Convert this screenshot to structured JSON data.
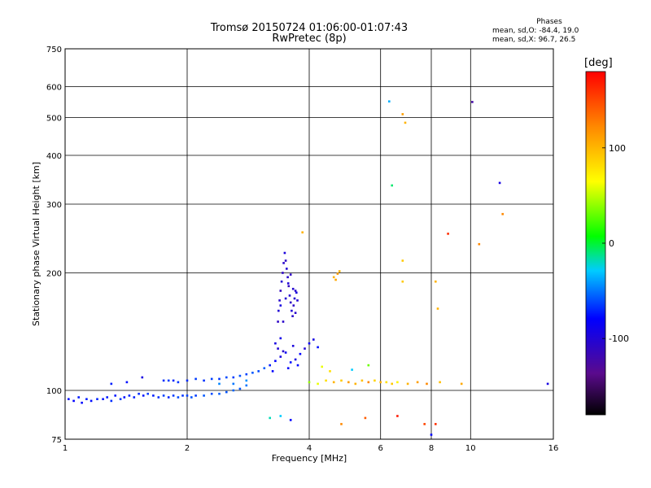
{
  "header": {
    "title_line1": "Tromsø 20150724 01:06:00-01:07:43",
    "title_line2": "RwPretec (8p)"
  },
  "phases_box": {
    "title": "Phases",
    "line_o": "mean, sd,O: -84.4, 19.0",
    "line_x": "mean, sd,X:  96.7, 26.5"
  },
  "colorbar": {
    "title": "[deg]",
    "tick_labels": [
      "100",
      "0",
      "-100"
    ],
    "tick_values": [
      100,
      0,
      -100
    ],
    "range": [
      -180,
      180
    ]
  },
  "chart_data": {
    "type": "scatter",
    "xlabel": "Frequency [MHz]",
    "ylabel": "Stationary phase Virtual Height [km]",
    "x_scale": "log",
    "y_scale": "log",
    "xlim": [
      1,
      16
    ],
    "ylim": [
      75,
      750
    ],
    "x_ticks": [
      1,
      2,
      4,
      6,
      8,
      10,
      16
    ],
    "y_ticks": [
      75,
      100,
      200,
      300,
      400,
      500,
      600,
      750
    ],
    "grid": true,
    "color_by": "phase [deg]",
    "points": [
      {
        "x": 1.02,
        "y": 95,
        "p": -95
      },
      {
        "x": 1.05,
        "y": 94,
        "p": -100
      },
      {
        "x": 1.08,
        "y": 96,
        "p": -92
      },
      {
        "x": 1.1,
        "y": 93,
        "p": -98
      },
      {
        "x": 1.13,
        "y": 95,
        "p": -90
      },
      {
        "x": 1.16,
        "y": 94,
        "p": -96
      },
      {
        "x": 1.2,
        "y": 95,
        "p": -88
      },
      {
        "x": 1.24,
        "y": 95,
        "p": -94
      },
      {
        "x": 1.27,
        "y": 96,
        "p": -90
      },
      {
        "x": 1.3,
        "y": 94,
        "p": -85
      },
      {
        "x": 1.33,
        "y": 97,
        "p": -92
      },
      {
        "x": 1.37,
        "y": 95,
        "p": -80
      },
      {
        "x": 1.4,
        "y": 96,
        "p": -95
      },
      {
        "x": 1.44,
        "y": 97,
        "p": -88
      },
      {
        "x": 1.48,
        "y": 96,
        "p": -90
      },
      {
        "x": 1.52,
        "y": 98,
        "p": -86
      },
      {
        "x": 1.56,
        "y": 97,
        "p": -93
      },
      {
        "x": 1.6,
        "y": 98,
        "p": -80
      },
      {
        "x": 1.65,
        "y": 97,
        "p": -90
      },
      {
        "x": 1.7,
        "y": 96,
        "p": -85
      },
      {
        "x": 1.75,
        "y": 97,
        "p": -78
      },
      {
        "x": 1.8,
        "y": 96,
        "p": -88
      },
      {
        "x": 1.85,
        "y": 97,
        "p": -80
      },
      {
        "x": 1.9,
        "y": 96,
        "p": -75
      },
      {
        "x": 1.95,
        "y": 97,
        "p": -82
      },
      {
        "x": 2.0,
        "y": 97,
        "p": -78
      },
      {
        "x": 2.05,
        "y": 96,
        "p": -72
      },
      {
        "x": 2.1,
        "y": 97,
        "p": -80
      },
      {
        "x": 2.2,
        "y": 97,
        "p": -70
      },
      {
        "x": 2.3,
        "y": 98,
        "p": -75
      },
      {
        "x": 2.4,
        "y": 98,
        "p": -68
      },
      {
        "x": 2.5,
        "y": 99,
        "p": -72
      },
      {
        "x": 2.6,
        "y": 100,
        "p": -65
      },
      {
        "x": 2.7,
        "y": 101,
        "p": -70
      },
      {
        "x": 2.8,
        "y": 103,
        "p": -60
      },
      {
        "x": 1.3,
        "y": 104,
        "p": -90
      },
      {
        "x": 1.42,
        "y": 105,
        "p": -95
      },
      {
        "x": 1.55,
        "y": 108,
        "p": -110
      },
      {
        "x": 1.75,
        "y": 106,
        "p": -85
      },
      {
        "x": 1.8,
        "y": 106,
        "p": -80
      },
      {
        "x": 1.85,
        "y": 106,
        "p": -88
      },
      {
        "x": 1.9,
        "y": 105,
        "p": -82
      },
      {
        "x": 2.0,
        "y": 106,
        "p": -86
      },
      {
        "x": 2.1,
        "y": 107,
        "p": -80
      },
      {
        "x": 2.2,
        "y": 106,
        "p": -84
      },
      {
        "x": 2.3,
        "y": 107,
        "p": -78
      },
      {
        "x": 2.4,
        "y": 107,
        "p": -82
      },
      {
        "x": 2.5,
        "y": 108,
        "p": -75
      },
      {
        "x": 2.6,
        "y": 108,
        "p": -80
      },
      {
        "x": 2.7,
        "y": 109,
        "p": -72
      },
      {
        "x": 2.8,
        "y": 110,
        "p": -78
      },
      {
        "x": 2.9,
        "y": 111,
        "p": -70
      },
      {
        "x": 3.0,
        "y": 112,
        "p": -75
      },
      {
        "x": 3.1,
        "y": 114,
        "p": -68
      },
      {
        "x": 3.2,
        "y": 116,
        "p": -90
      },
      {
        "x": 3.3,
        "y": 119,
        "p": -100
      },
      {
        "x": 3.4,
        "y": 122,
        "p": -110
      },
      {
        "x": 3.5,
        "y": 125,
        "p": -105
      },
      {
        "x": 3.6,
        "y": 118,
        "p": -95
      },
      {
        "x": 3.7,
        "y": 120,
        "p": -110
      },
      {
        "x": 3.8,
        "y": 124,
        "p": -100
      },
      {
        "x": 3.9,
        "y": 128,
        "p": -115
      },
      {
        "x": 4.0,
        "y": 132,
        "p": -105
      },
      {
        "x": 4.1,
        "y": 135,
        "p": -110
      },
      {
        "x": 4.2,
        "y": 129,
        "p": -95
      },
      {
        "x": 3.3,
        "y": 132,
        "p": -110
      },
      {
        "x": 3.35,
        "y": 128,
        "p": -115
      },
      {
        "x": 3.4,
        "y": 136,
        "p": -108
      },
      {
        "x": 3.45,
        "y": 126,
        "p": -118
      },
      {
        "x": 3.25,
        "y": 112,
        "p": -100
      },
      {
        "x": 3.55,
        "y": 114,
        "p": -102
      },
      {
        "x": 3.65,
        "y": 130,
        "p": -112
      },
      {
        "x": 3.75,
        "y": 116,
        "p": -98
      },
      {
        "x": 3.35,
        "y": 150,
        "p": -120
      },
      {
        "x": 3.36,
        "y": 160,
        "p": -115
      },
      {
        "x": 3.38,
        "y": 170,
        "p": -118
      },
      {
        "x": 3.4,
        "y": 180,
        "p": -122
      },
      {
        "x": 3.42,
        "y": 190,
        "p": -116
      },
      {
        "x": 3.44,
        "y": 200,
        "p": -120
      },
      {
        "x": 3.46,
        "y": 212,
        "p": -118
      },
      {
        "x": 3.48,
        "y": 225,
        "p": -112
      },
      {
        "x": 3.5,
        "y": 215,
        "p": -120
      },
      {
        "x": 3.52,
        "y": 205,
        "p": -115
      },
      {
        "x": 3.54,
        "y": 195,
        "p": -118
      },
      {
        "x": 3.56,
        "y": 185,
        "p": -122
      },
      {
        "x": 3.58,
        "y": 175,
        "p": -116
      },
      {
        "x": 3.6,
        "y": 168,
        "p": -120
      },
      {
        "x": 3.62,
        "y": 160,
        "p": -114
      },
      {
        "x": 3.64,
        "y": 155,
        "p": -118
      },
      {
        "x": 3.66,
        "y": 165,
        "p": -120
      },
      {
        "x": 3.68,
        "y": 172,
        "p": -116
      },
      {
        "x": 3.7,
        "y": 180,
        "p": -118
      },
      {
        "x": 3.72,
        "y": 178,
        "p": -112
      },
      {
        "x": 3.74,
        "y": 170,
        "p": -116
      },
      {
        "x": 3.4,
        "y": 165,
        "p": -110
      },
      {
        "x": 3.45,
        "y": 150,
        "p": -118
      },
      {
        "x": 3.5,
        "y": 172,
        "p": -116
      },
      {
        "x": 3.55,
        "y": 188,
        "p": -114
      },
      {
        "x": 3.6,
        "y": 198,
        "p": -120
      },
      {
        "x": 3.65,
        "y": 182,
        "p": -116
      },
      {
        "x": 3.7,
        "y": 158,
        "p": -118
      },
      {
        "x": 2.4,
        "y": 104,
        "p": -55
      },
      {
        "x": 2.6,
        "y": 104,
        "p": -60
      },
      {
        "x": 2.8,
        "y": 106,
        "p": -50
      },
      {
        "x": 3.2,
        "y": 85,
        "p": -20
      },
      {
        "x": 3.4,
        "y": 86,
        "p": -30
      },
      {
        "x": 3.6,
        "y": 84,
        "p": -100
      },
      {
        "x": 4.0,
        "y": 105,
        "p": 40
      },
      {
        "x": 4.2,
        "y": 104,
        "p": 60
      },
      {
        "x": 4.4,
        "y": 106,
        "p": 80
      },
      {
        "x": 4.6,
        "y": 105,
        "p": 100
      },
      {
        "x": 4.8,
        "y": 106,
        "p": 90
      },
      {
        "x": 5.0,
        "y": 105,
        "p": 110
      },
      {
        "x": 5.2,
        "y": 104,
        "p": 100
      },
      {
        "x": 5.4,
        "y": 106,
        "p": 95
      },
      {
        "x": 5.6,
        "y": 105,
        "p": 120
      },
      {
        "x": 5.8,
        "y": 106,
        "p": 85
      },
      {
        "x": 6.0,
        "y": 105,
        "p": 100
      },
      {
        "x": 6.2,
        "y": 105,
        "p": 80
      },
      {
        "x": 6.4,
        "y": 104,
        "p": 90
      },
      {
        "x": 6.6,
        "y": 105,
        "p": 70
      },
      {
        "x": 7.0,
        "y": 104,
        "p": 100
      },
      {
        "x": 7.4,
        "y": 105,
        "p": 110
      },
      {
        "x": 7.8,
        "y": 104,
        "p": 120
      },
      {
        "x": 8.4,
        "y": 105,
        "p": 95
      },
      {
        "x": 9.5,
        "y": 104,
        "p": 105
      },
      {
        "x": 15.5,
        "y": 104,
        "p": -110
      },
      {
        "x": 4.3,
        "y": 115,
        "p": 60
      },
      {
        "x": 4.5,
        "y": 112,
        "p": 80
      },
      {
        "x": 5.1,
        "y": 113,
        "p": -30
      },
      {
        "x": 5.6,
        "y": 116,
        "p": 30
      },
      {
        "x": 4.6,
        "y": 195,
        "p": 100
      },
      {
        "x": 4.7,
        "y": 199,
        "p": 110
      },
      {
        "x": 4.65,
        "y": 192,
        "p": 105
      },
      {
        "x": 4.75,
        "y": 202,
        "p": 100
      },
      {
        "x": 6.3,
        "y": 550,
        "p": -40
      },
      {
        "x": 6.8,
        "y": 510,
        "p": 110
      },
      {
        "x": 6.9,
        "y": 485,
        "p": 100
      },
      {
        "x": 6.4,
        "y": 335,
        "p": -10
      },
      {
        "x": 6.8,
        "y": 215,
        "p": 90
      },
      {
        "x": 6.8,
        "y": 190,
        "p": 90
      },
      {
        "x": 8.2,
        "y": 190,
        "p": 100
      },
      {
        "x": 8.3,
        "y": 162,
        "p": 100
      },
      {
        "x": 8.8,
        "y": 252,
        "p": 160
      },
      {
        "x": 10.1,
        "y": 548,
        "p": -130
      },
      {
        "x": 11.8,
        "y": 340,
        "p": -110
      },
      {
        "x": 12.0,
        "y": 283,
        "p": 120
      },
      {
        "x": 3.85,
        "y": 254,
        "p": 100
      },
      {
        "x": 4.8,
        "y": 82,
        "p": 120
      },
      {
        "x": 5.5,
        "y": 85,
        "p": 140
      },
      {
        "x": 7.7,
        "y": 82,
        "p": 150
      },
      {
        "x": 8.2,
        "y": 82,
        "p": 160
      },
      {
        "x": 8.0,
        "y": 77,
        "p": -100
      },
      {
        "x": 6.6,
        "y": 86,
        "p": 170
      },
      {
        "x": 10.5,
        "y": 237,
        "p": 120
      }
    ]
  }
}
